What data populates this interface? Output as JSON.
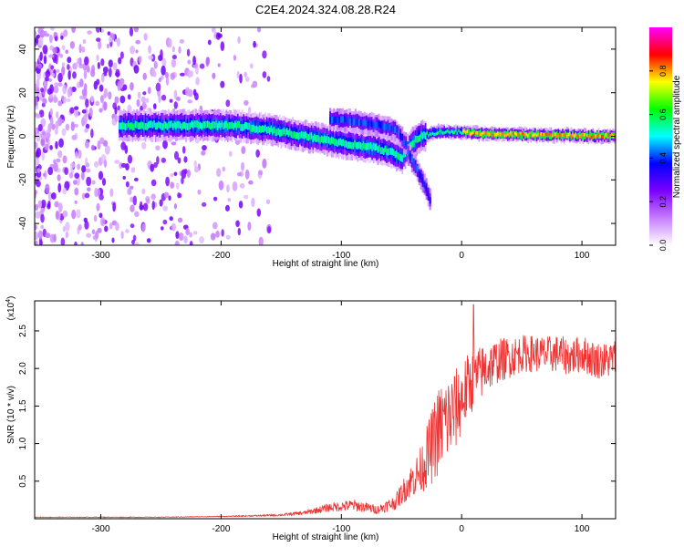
{
  "figure": {
    "title": "C2E4.2024.324.08.28.R24"
  },
  "chart_data": [
    {
      "type": "heatmap",
      "title": "C2E4.2024.324.08.28.R24",
      "xlabel": "Height of straight line (km)",
      "ylabel": "Frequency (Hz)",
      "xlim": [
        -355,
        128
      ],
      "ylim": [
        -50,
        50
      ],
      "xticks": [
        -300,
        -200,
        -100,
        0,
        100
      ],
      "yticks": [
        -40,
        -20,
        0,
        20,
        40
      ],
      "colorbar": {
        "label": "Normalized spectral amplitude",
        "range": [
          0,
          1
        ],
        "ticks": [
          "0.0",
          "0.2",
          "0.4",
          "0.6",
          "0.8"
        ],
        "tick_values": [
          0.0,
          0.2,
          0.4,
          0.6,
          0.8
        ],
        "colormap": [
          "#ffffff",
          "#c77dff",
          "#7a00ff",
          "#0000ff",
          "#00ffff",
          "#00ff00",
          "#ffff00",
          "#ff0000",
          "#ff00ff"
        ]
      },
      "features": [
        {
          "label": "noise",
          "x": [
            -355,
            -160
          ],
          "y": [
            -50,
            50
          ],
          "level": 0.2
        },
        {
          "label": "main trace",
          "points": [
            [
              -285,
              5
            ],
            [
              -250,
              5
            ],
            [
              -220,
              5
            ],
            [
              -190,
              5
            ],
            [
              -160,
              3
            ],
            [
              -130,
              0
            ],
            [
              -100,
              -3
            ],
            [
              -75,
              -5
            ],
            [
              -60,
              -7
            ],
            [
              -50,
              -10
            ],
            [
              -45,
              -5
            ],
            [
              -35,
              0
            ],
            [
              -20,
              2
            ],
            [
              0,
              2
            ],
            [
              20,
              1
            ],
            [
              128,
              0
            ]
          ],
          "level": 0.5
        },
        {
          "label": "upper branch",
          "points": [
            [
              -110,
              8
            ],
            [
              -90,
              7
            ],
            [
              -70,
              5
            ],
            [
              -55,
              3
            ],
            [
              -45,
              -5
            ]
          ],
          "level": 0.3
        },
        {
          "label": "lower branch",
          "points": [
            [
              -45,
              -8
            ],
            [
              -38,
              -15
            ],
            [
              -32,
              -22
            ],
            [
              -26,
              -30
            ]
          ],
          "level": 0.15
        }
      ]
    },
    {
      "type": "line",
      "xlabel": "Height of straight line (km)",
      "ylabel": "SNR (10 * v/v)",
      "ylabel_multiplier": "(x10",
      "ylabel_exponent": "4",
      "ylabel_multiplier_close": ")",
      "xlim": [
        -355,
        128
      ],
      "ylim": [
        0,
        2.9
      ],
      "xticks": [
        -300,
        -200,
        -100,
        0,
        100
      ],
      "yticks": [
        0.5,
        1.0,
        1.5,
        2.0,
        2.5
      ],
      "ytick_labels": [
        "0.5",
        "1.0",
        "1.5",
        "2.0",
        "2.5"
      ],
      "series": [
        {
          "color": "#ee3333",
          "x": [
            -355,
            -300,
            -250,
            -200,
            -170,
            -150,
            -130,
            -110,
            -90,
            -70,
            -55,
            -45,
            -35,
            -25,
            -20,
            -15,
            -10,
            -5,
            0,
            5,
            10,
            20,
            30,
            40,
            50,
            60,
            70,
            80,
            90,
            100,
            110,
            120,
            128
          ],
          "values": [
            0.02,
            0.02,
            0.02,
            0.03,
            0.04,
            0.05,
            0.08,
            0.15,
            0.18,
            0.12,
            0.22,
            0.45,
            0.62,
            0.95,
            1.15,
            1.28,
            1.35,
            1.45,
            1.6,
            1.75,
            1.85,
            2.0,
            2.1,
            2.15,
            2.2,
            2.2,
            2.18,
            2.2,
            2.15,
            2.2,
            2.12,
            2.1,
            2.15
          ],
          "spread": [
            0.005,
            0.005,
            0.005,
            0.005,
            0.01,
            0.015,
            0.03,
            0.06,
            0.08,
            0.06,
            0.1,
            0.2,
            0.3,
            0.5,
            0.6,
            0.6,
            0.6,
            0.55,
            0.5,
            0.45,
            0.4,
            0.35,
            0.3,
            0.28,
            0.25,
            0.25,
            0.25,
            0.25,
            0.25,
            0.25,
            0.25,
            0.25,
            0.25
          ]
        }
      ]
    }
  ]
}
